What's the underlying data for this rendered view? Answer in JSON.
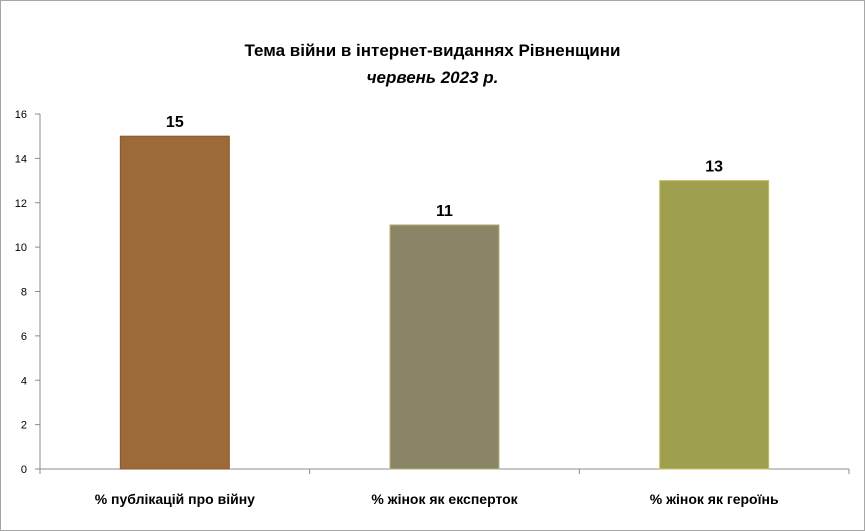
{
  "chart_data": {
    "type": "bar",
    "title": "Тема війни в інтернет-виданнях  Рівненщини",
    "subtitle": "червень 2023 р.",
    "categories": [
      "% публікацій про війну",
      "% жінок як експерток",
      "% жінок як героїнь"
    ],
    "values": [
      15,
      11,
      13
    ],
    "bar_colors": [
      "#9c6a38",
      "#8a8567",
      "#9ea050"
    ],
    "bar_edge_colors": [
      "#8a5a2c",
      "#b8b070",
      "#c8c060"
    ],
    "ylim": [
      0,
      16
    ],
    "yticks": [
      0,
      2,
      4,
      6,
      8,
      10,
      12,
      14,
      16
    ],
    "data_labels": true,
    "grid": false,
    "legend": "none"
  }
}
